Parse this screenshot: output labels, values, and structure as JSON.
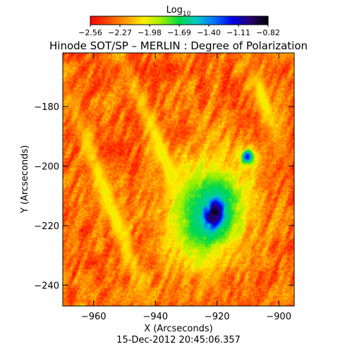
{
  "chart_data": {
    "type": "heatmap",
    "title": "Hinode SOT/SP – MERLIN : Degree of Polarization",
    "xlabel": "X (Arcseconds)",
    "ylabel": "Y (Arcseconds)",
    "timestamp": "15-Dec-2012 20:45:06.357",
    "colorbar": {
      "title_base": "Log",
      "title_sub": "10",
      "ticks": [
        "-2.56",
        "-2.27",
        "-1.98",
        "-1.69",
        "-1.40",
        "-1.11",
        "-0.82"
      ],
      "range": [
        -2.56,
        -0.82
      ],
      "colormap": [
        "#ff0000",
        "#ff4a00",
        "#ff9a00",
        "#ffee00",
        "#9cf000",
        "#00d84a",
        "#00c8c8",
        "#0070ff",
        "#0000e8",
        "#280070",
        "#000000"
      ]
    },
    "xlim": [
      -970,
      -895
    ],
    "ylim": [
      -247,
      -162
    ],
    "xticks": [
      {
        "value": -960,
        "label": "−960"
      },
      {
        "value": -940,
        "label": "−940"
      },
      {
        "value": -920,
        "label": "−920"
      },
      {
        "value": -900,
        "label": "−900"
      }
    ],
    "yticks": [
      {
        "value": -180,
        "label": "−180"
      },
      {
        "value": -200,
        "label": "−200"
      },
      {
        "value": -220,
        "label": "−220"
      },
      {
        "value": -240,
        "label": "−240"
      }
    ],
    "features": [
      {
        "kind": "sunspot-umbra",
        "x": -921,
        "y": -216,
        "rx": 6,
        "ry": 9,
        "rot": -12,
        "peak": -0.85
      },
      {
        "kind": "penumbra",
        "x": -923,
        "y": -215,
        "rx": 15,
        "ry": 21,
        "rot": -15,
        "peak": -1.6
      },
      {
        "kind": "pore",
        "x": -910,
        "y": -197,
        "rx": 2.5,
        "ry": 3,
        "rot": 0,
        "peak": -1.15
      },
      {
        "kind": "plage-streak",
        "x": -936,
        "y": -200,
        "rx": 3,
        "ry": 38,
        "rot": 22,
        "peak": -2.0
      },
      {
        "kind": "plage-streak",
        "x": -955,
        "y": -212,
        "rx": 3,
        "ry": 40,
        "rot": 20,
        "peak": -2.0
      },
      {
        "kind": "plage-streak",
        "x": -905,
        "y": -178,
        "rx": 3,
        "ry": 14,
        "rot": 18,
        "peak": -2.0
      }
    ]
  }
}
